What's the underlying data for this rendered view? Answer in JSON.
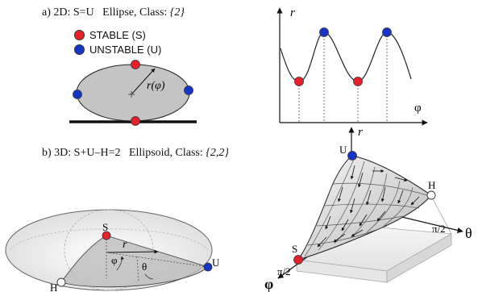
{
  "panel_a": {
    "prefix": "a) 2D: S=U",
    "shape": "Ellipse, Class:",
    "class_value": "{2}"
  },
  "legend": {
    "stable": "STABLE (S)",
    "unstable": "UNSTABLE (U)"
  },
  "ellipse_radius_label": "r(φ)",
  "plot": {
    "ylabel": "r",
    "xlabel": "φ"
  },
  "panel_b": {
    "prefix": "b) 3D: S+U–H=2",
    "shape": "Ellipsoid, Class:",
    "class_value": "{2,2}"
  },
  "ellipsoid": {
    "S": "S",
    "U": "U",
    "H": "H",
    "r": "r",
    "phi": "φ",
    "theta": "θ"
  },
  "surface": {
    "U": "U",
    "H": "H",
    "S": "S",
    "r_axis": "r",
    "theta_axis": "θ",
    "phi_axis": "φ",
    "tick_theta": "π/2",
    "tick_phi": "π/2"
  },
  "colors": {
    "stable": "#e8202a",
    "unstable": "#1436c8",
    "hybrid": "#ffffff",
    "body_gray": "#c4c4c4"
  }
}
